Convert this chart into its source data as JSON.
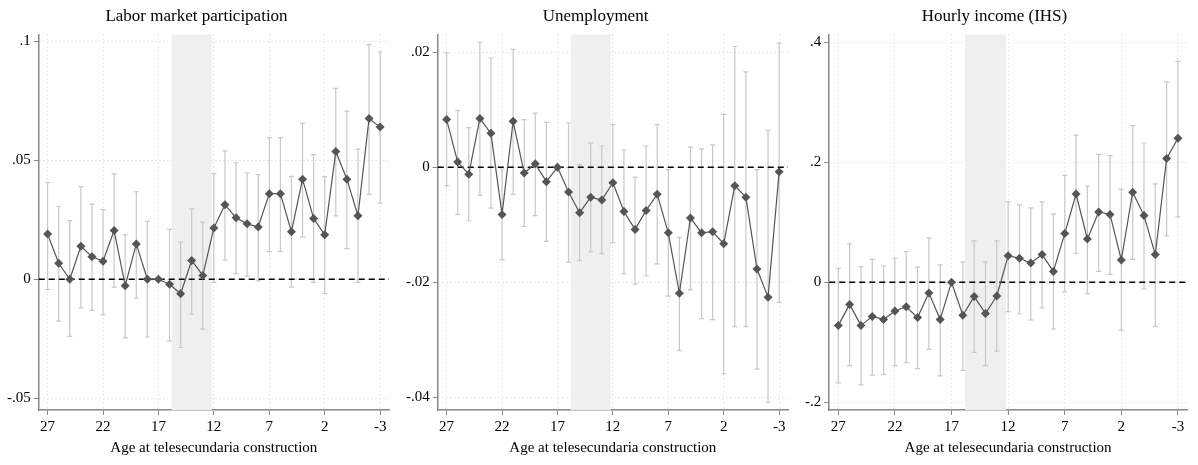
{
  "chart_data": [
    {
      "type": "line",
      "title": "Labor market participation",
      "xlabel": "Age at telesecundaria construction",
      "x": [
        27,
        26,
        25,
        24,
        23,
        22,
        21,
        20,
        19,
        18,
        17,
        16,
        15,
        14,
        13,
        12,
        11,
        10,
        9,
        8,
        7,
        6,
        5,
        4,
        3,
        2,
        1,
        0,
        -1,
        -2,
        -3
      ],
      "series": [
        {
          "color": "#555555",
          "values": [
            0.019,
            0.0067,
            0.0,
            0.0139,
            0.0095,
            0.0076,
            0.0205,
            -0.0027,
            0.0148,
            0.0,
            0.0,
            -0.0021,
            -0.0061,
            0.0079,
            0.0016,
            0.0216,
            0.0313,
            0.0259,
            0.0233,
            0.022,
            0.036,
            0.036,
            0.02,
            0.0421,
            0.0256,
            0.0187,
            0.0537,
            0.0421,
            0.0267,
            0.0676,
            0.064
          ],
          "errors": [
            [
              -0.0043,
              0.0407
            ],
            [
              -0.0176,
              0.0307
            ],
            [
              -0.024,
              0.0247
            ],
            [
              -0.012,
              0.039
            ],
            [
              -0.0131,
              0.0316
            ],
            [
              -0.0149,
              0.0293
            ],
            [
              -0.0033,
              0.0443
            ],
            [
              -0.0247,
              0.0187
            ],
            [
              -0.008,
              0.0368
            ],
            [
              -0.0243,
              0.0244
            ],
            null,
            [
              -0.026,
              0.021
            ],
            [
              -0.0287,
              0.0156
            ],
            [
              -0.0147,
              0.0296
            ],
            [
              -0.021,
              0.024
            ],
            [
              -0.0013,
              0.0444
            ],
            [
              0.008,
              0.054
            ],
            [
              0.0024,
              0.049
            ],
            [
              0.0013,
              0.0447
            ],
            [
              -0.0007,
              0.044
            ],
            [
              0.0116,
              0.0596
            ],
            [
              0.0116,
              0.0596
            ],
            [
              -0.0033,
              0.0433
            ],
            [
              0.0177,
              0.0656
            ],
            [
              -0.0013,
              0.0524
            ],
            [
              -0.006,
              0.0432
            ],
            [
              0.0267,
              0.0803
            ],
            [
              0.0129,
              0.0707
            ],
            [
              -0.0013,
              0.0547
            ],
            [
              0.0357,
              0.0987
            ],
            [
              0.032,
              0.0956
            ]
          ]
        }
      ],
      "xlim": [
        27.8,
        -3.8
      ],
      "ylim": [
        -0.055,
        0.103
      ],
      "xticks": [
        27,
        22,
        17,
        12,
        7,
        2,
        -3
      ],
      "yticks": [
        {
          "value": -0.05,
          "label": "-.05"
        },
        {
          "value": 0,
          "label": "0"
        },
        {
          "value": 0.05,
          "label": ".05"
        },
        {
          "value": 0.1,
          "label": ".1"
        }
      ],
      "grid": true,
      "marker": "diamond",
      "bands": [
        {
          "axis": "x",
          "from": 15.8,
          "to": 12.2,
          "color": "#efefef"
        }
      ],
      "ref_lines": [
        {
          "axis": "y",
          "value": 0,
          "color": "#000000",
          "line_style": "dashed"
        }
      ]
    },
    {
      "type": "line",
      "title": "Unemployment",
      "xlabel": "Age at telesecundaria construction",
      "x": [
        27,
        26,
        25,
        24,
        23,
        22,
        21,
        20,
        19,
        18,
        17,
        16,
        15,
        14,
        13,
        12,
        11,
        10,
        9,
        8,
        7,
        6,
        5,
        4,
        3,
        2,
        1,
        0,
        -1,
        -2,
        -3
      ],
      "series": [
        {
          "color": "#555555",
          "values": [
            0.0083,
            0.0009,
            -0.0012,
            0.0085,
            0.0059,
            -0.0082,
            0.008,
            -0.001,
            0.0006,
            -0.0025,
            0.0,
            -0.0043,
            -0.0079,
            -0.0052,
            -0.0057,
            -0.0027,
            -0.0077,
            -0.0108,
            -0.0075,
            -0.0047,
            -0.0114,
            -0.0219,
            -0.0088,
            -0.0114,
            -0.0112,
            -0.0133,
            -0.0032,
            -0.0052,
            -0.0177,
            -0.0226,
            -0.0008
          ],
          "errors": [
            [
              -0.0032,
              0.0199
            ],
            [
              -0.0082,
              0.0099
            ],
            [
              -0.0093,
              0.0069
            ],
            [
              -0.0049,
              0.0217
            ],
            [
              -0.0071,
              0.019
            ],
            [
              -0.0161,
              -0.0003
            ],
            [
              -0.0047,
              0.0205
            ],
            [
              -0.0103,
              0.0083
            ],
            [
              -0.0084,
              0.0094
            ],
            [
              -0.0129,
              0.0078
            ],
            null,
            [
              -0.0165,
              0.0077
            ],
            [
              -0.0162,
              0.0004
            ],
            [
              -0.0147,
              0.0042
            ],
            [
              -0.015,
              0.0037
            ],
            [
              -0.0131,
              0.0074
            ],
            [
              -0.0185,
              0.003
            ],
            [
              -0.0203,
              -0.0017
            ],
            [
              -0.0189,
              0.0037
            ],
            [
              -0.0168,
              0.0074
            ],
            [
              -0.0224,
              -0.0004
            ],
            [
              -0.0319,
              -0.0122
            ],
            [
              -0.0213,
              0.0035
            ],
            [
              -0.0263,
              0.0032
            ],
            [
              -0.0265,
              0.0039
            ],
            [
              -0.0359,
              0.0092
            ],
            [
              -0.0277,
              0.021
            ],
            [
              -0.0277,
              0.0166
            ],
            [
              -0.0351,
              -0.0004
            ],
            [
              -0.0409,
              0.0064
            ],
            [
              -0.0235,
              0.0216
            ]
          ]
        }
      ],
      "xlim": [
        27.8,
        -3.8
      ],
      "ylim": [
        -0.0422,
        0.0231
      ],
      "xticks": [
        27,
        22,
        17,
        12,
        7,
        2,
        -3
      ],
      "yticks": [
        {
          "value": -0.04,
          "label": "-.04"
        },
        {
          "value": -0.02,
          "label": "-.02"
        },
        {
          "value": 0,
          "label": "0"
        },
        {
          "value": 0.02,
          "label": ".02"
        }
      ],
      "grid": true,
      "marker": "diamond",
      "bands": [
        {
          "axis": "x",
          "from": 15.8,
          "to": 12.2,
          "color": "#efefef"
        }
      ],
      "ref_lines": [
        {
          "axis": "y",
          "value": 0,
          "color": "#000000",
          "line_style": "dashed"
        }
      ]
    },
    {
      "type": "line",
      "title": "Hourly income (IHS)",
      "xlabel": "Age at telesecundaria construction",
      "x": [
        27,
        26,
        25,
        24,
        23,
        22,
        21,
        20,
        19,
        18,
        17,
        16,
        15,
        14,
        13,
        12,
        11,
        10,
        9,
        8,
        7,
        6,
        5,
        4,
        3,
        2,
        1,
        0,
        -1,
        -2,
        -3
      ],
      "series": [
        {
          "color": "#555555",
          "values": [
            -0.072,
            -0.037,
            -0.072,
            -0.057,
            -0.062,
            -0.048,
            -0.041,
            -0.059,
            -0.018,
            -0.062,
            0.0,
            -0.055,
            -0.024,
            -0.052,
            -0.023,
            0.044,
            0.04,
            0.032,
            0.046,
            0.018,
            0.081,
            0.147,
            0.072,
            0.117,
            0.113,
            0.037,
            0.15,
            0.111,
            0.046,
            0.206,
            0.24
          ],
          "errors": [
            [
              -0.168,
              0.023
            ],
            [
              -0.139,
              0.064
            ],
            [
              -0.171,
              0.026
            ],
            [
              -0.155,
              0.038
            ],
            [
              -0.154,
              0.027
            ],
            [
              -0.139,
              0.04
            ],
            [
              -0.134,
              0.051
            ],
            [
              -0.144,
              0.025
            ],
            [
              -0.112,
              0.074
            ],
            [
              -0.156,
              0.029
            ],
            null,
            [
              -0.147,
              0.034
            ],
            [
              -0.117,
              0.069
            ],
            [
              -0.139,
              0.034
            ],
            [
              -0.115,
              0.069
            ],
            [
              -0.049,
              0.134
            ],
            [
              -0.053,
              0.129
            ],
            [
              -0.063,
              0.124
            ],
            [
              -0.043,
              0.134
            ],
            [
              -0.078,
              0.114
            ],
            [
              -0.016,
              0.178
            ],
            [
              0.048,
              0.245
            ],
            [
              -0.019,
              0.16
            ],
            [
              0.018,
              0.213
            ],
            [
              0.013,
              0.211
            ],
            [
              -0.08,
              0.155
            ],
            [
              0.038,
              0.261
            ],
            [
              -0.011,
              0.232
            ],
            [
              -0.074,
              0.164
            ],
            [
              0.077,
              0.334
            ],
            [
              0.109,
              0.368
            ]
          ]
        }
      ],
      "xlim": [
        27.8,
        -3.8
      ],
      "ylim": [
        -0.213,
        0.413
      ],
      "xticks": [
        27,
        22,
        17,
        12,
        7,
        2,
        -3
      ],
      "yticks": [
        {
          "value": -0.2,
          "label": "-.2"
        },
        {
          "value": 0,
          "label": "0"
        },
        {
          "value": 0.2,
          "label": ".2"
        },
        {
          "value": 0.4,
          "label": ".4"
        }
      ],
      "grid": true,
      "marker": "diamond",
      "bands": [
        {
          "axis": "x",
          "from": 15.8,
          "to": 12.2,
          "color": "#efefef"
        }
      ],
      "ref_lines": [
        {
          "axis": "y",
          "value": 0,
          "color": "#000000",
          "line_style": "dashed"
        }
      ]
    }
  ]
}
